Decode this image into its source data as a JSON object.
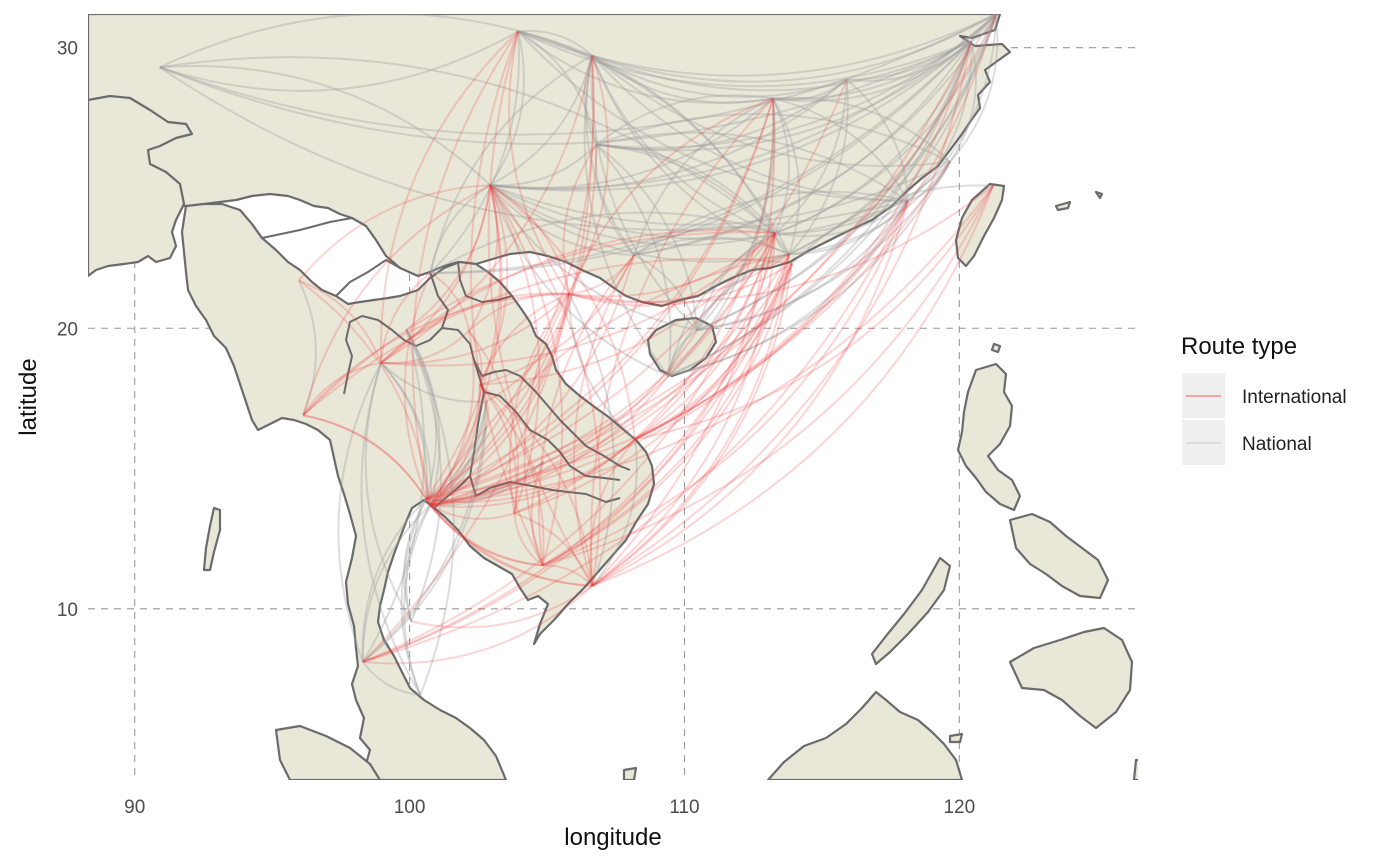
{
  "chart_data": {
    "type": "map",
    "xlabel": "longitude",
    "ylabel": "latitude",
    "xlim": [
      88.3,
      126.5
    ],
    "ylim": [
      3.9,
      31.2
    ],
    "x_ticks": [
      90,
      100,
      110,
      120
    ],
    "y_ticks": [
      10,
      20,
      30
    ],
    "grid": true,
    "legend": {
      "title": "Route type",
      "position": "right",
      "entries": [
        {
          "name": "International",
          "color": "#f26b6b"
        },
        {
          "name": "National",
          "color": "#c9c9c9"
        }
      ]
    },
    "colors": {
      "international": "#ee3b3b",
      "national": "#9e9e9e",
      "land": "#e9e7d8",
      "outline": "#6b6b6b"
    },
    "airports": {
      "BKK": [
        100.75,
        13.69
      ],
      "DMK": [
        100.6,
        13.91
      ],
      "CNX": [
        98.96,
        18.77
      ],
      "HKT": [
        98.3,
        8.11
      ],
      "USM": [
        100.06,
        9.55
      ],
      "HDY": [
        100.39,
        6.93
      ],
      "CEI": [
        99.88,
        19.95
      ],
      "KKC": [
        102.78,
        16.47
      ],
      "UTH": [
        102.79,
        17.39
      ],
      "UBP": [
        104.87,
        15.25
      ],
      "VTE": [
        102.56,
        17.99
      ],
      "LPQ": [
        102.16,
        19.9
      ],
      "PNH": [
        104.84,
        11.55
      ],
      "REP": [
        103.81,
        13.41
      ],
      "SGN": [
        106.65,
        10.82
      ],
      "HAN": [
        105.8,
        21.22
      ],
      "DAD": [
        108.2,
        16.04
      ],
      "RGN": [
        96.13,
        16.9
      ],
      "MDL": [
        95.97,
        21.7
      ],
      "KMG": [
        102.93,
        25.1
      ],
      "CKG": [
        106.64,
        29.72
      ],
      "CAN": [
        113.3,
        23.39
      ],
      "SZX": [
        113.81,
        22.64
      ],
      "HKG": [
        113.91,
        22.31
      ],
      "HAK": [
        110.46,
        19.93
      ],
      "SYX": [
        109.41,
        18.3
      ],
      "NNG": [
        108.17,
        22.61
      ],
      "XMN": [
        118.13,
        24.54
      ],
      "FOC": [
        119.66,
        25.93
      ],
      "CSX": [
        113.22,
        28.19
      ],
      "KWE": [
        106.8,
        26.54
      ],
      "KHN": [
        115.9,
        28.86
      ],
      "HGH": [
        120.43,
        30.23
      ],
      "SHA": [
        121.34,
        31.2
      ],
      "TPE": [
        121.23,
        25.08
      ],
      "LXA": [
        90.91,
        29.3
      ],
      "JHG": [
        100.76,
        21.97
      ],
      "CTU": [
        103.95,
        30.58
      ]
    },
    "international_routes": [
      [
        "BKK",
        "HAN"
      ],
      [
        "BKK",
        "SGN"
      ],
      [
        "BKK",
        "PNH"
      ],
      [
        "BKK",
        "REP"
      ],
      [
        "BKK",
        "VTE"
      ],
      [
        "BKK",
        "LPQ"
      ],
      [
        "BKK",
        "DAD"
      ],
      [
        "BKK",
        "RGN"
      ],
      [
        "BKK",
        "MDL"
      ],
      [
        "BKK",
        "KMG"
      ],
      [
        "BKK",
        "CAN"
      ],
      [
        "BKK",
        "HKG"
      ],
      [
        "BKK",
        "SZX"
      ],
      [
        "BKK",
        "XMN"
      ],
      [
        "BKK",
        "CKG"
      ],
      [
        "BKK",
        "HGH"
      ],
      [
        "BKK",
        "TPE"
      ],
      [
        "BKK",
        "NNG"
      ],
      [
        "BKK",
        "CSX"
      ],
      [
        "BKK",
        "KWE"
      ],
      [
        "BKK",
        "HAK"
      ],
      [
        "BKK",
        "SYX"
      ],
      [
        "DMK",
        "HAN"
      ],
      [
        "DMK",
        "SGN"
      ],
      [
        "DMK",
        "PNH"
      ],
      [
        "DMK",
        "VTE"
      ],
      [
        "DMK",
        "KMG"
      ],
      [
        "DMK",
        "CAN"
      ],
      [
        "DMK",
        "CSX"
      ],
      [
        "DMK",
        "KHN"
      ],
      [
        "DMK",
        "FOC"
      ],
      [
        "DMK",
        "SHA"
      ],
      [
        "DMK",
        "DAD"
      ],
      [
        "DMK",
        "RGN"
      ],
      [
        "CNX",
        "KMG"
      ],
      [
        "CNX",
        "HAN"
      ],
      [
        "CNX",
        "CAN"
      ],
      [
        "CNX",
        "LPQ"
      ],
      [
        "CNX",
        "RGN"
      ],
      [
        "CNX",
        "MDL"
      ],
      [
        "CNX",
        "CKG"
      ],
      [
        "HKT",
        "CAN"
      ],
      [
        "HKT",
        "HKG"
      ],
      [
        "HKT",
        "SGN"
      ],
      [
        "HKT",
        "XMN"
      ],
      [
        "HKT",
        "SZX"
      ],
      [
        "HKT",
        "CKG"
      ],
      [
        "SGN",
        "PNH"
      ],
      [
        "SGN",
        "REP"
      ],
      [
        "SGN",
        "VTE"
      ],
      [
        "SGN",
        "KMG"
      ],
      [
        "SGN",
        "CAN"
      ],
      [
        "SGN",
        "HKG"
      ],
      [
        "SGN",
        "TPE"
      ],
      [
        "SGN",
        "XMN"
      ],
      [
        "SGN",
        "HGH"
      ],
      [
        "SGN",
        "SZX"
      ],
      [
        "SGN",
        "CSX"
      ],
      [
        "HAN",
        "VTE"
      ],
      [
        "HAN",
        "LPQ"
      ],
      [
        "HAN",
        "KMG"
      ],
      [
        "HAN",
        "CAN"
      ],
      [
        "HAN",
        "HKG"
      ],
      [
        "HAN",
        "SZX"
      ],
      [
        "HAN",
        "NNG"
      ],
      [
        "HAN",
        "TPE"
      ],
      [
        "HAN",
        "REP"
      ],
      [
        "HAN",
        "PNH"
      ],
      [
        "HAN",
        "CKG"
      ],
      [
        "HAN",
        "RGN"
      ],
      [
        "HAN",
        "CNX"
      ],
      [
        "DAD",
        "HKG"
      ],
      [
        "DAD",
        "CAN"
      ],
      [
        "DAD",
        "TPE"
      ],
      [
        "DAD",
        "CSX"
      ],
      [
        "DAD",
        "HGH"
      ],
      [
        "DAD",
        "SHA"
      ],
      [
        "DAD",
        "SZX"
      ],
      [
        "DAD",
        "KMG"
      ],
      [
        "DAD",
        "SGN"
      ],
      [
        "PNH",
        "KMG"
      ],
      [
        "PNH",
        "CAN"
      ],
      [
        "PNH",
        "HKG"
      ],
      [
        "PNH",
        "SZX"
      ],
      [
        "PNH",
        "XMN"
      ],
      [
        "PNH",
        "TPE"
      ],
      [
        "PNH",
        "VTE"
      ],
      [
        "REP",
        "CAN"
      ],
      [
        "REP",
        "HKG"
      ],
      [
        "REP",
        "KMG"
      ],
      [
        "REP",
        "VTE"
      ],
      [
        "REP",
        "LPQ"
      ],
      [
        "REP",
        "PNH"
      ],
      [
        "VTE",
        "KMG"
      ],
      [
        "VTE",
        "CAN"
      ],
      [
        "VTE",
        "NNG"
      ],
      [
        "VTE",
        "LPQ"
      ],
      [
        "LPQ",
        "KMG"
      ],
      [
        "LPQ",
        "JHG"
      ],
      [
        "JHG",
        "BKK"
      ],
      [
        "JHG",
        "CNX"
      ],
      [
        "KMG",
        "RGN"
      ],
      [
        "KMG",
        "MDL"
      ],
      [
        "CAN",
        "RGN"
      ],
      [
        "HKG",
        "RGN"
      ],
      [
        "KKC",
        "VTE"
      ],
      [
        "UBP",
        "PNH"
      ],
      [
        "UTH",
        "HAN"
      ],
      [
        "CEI",
        "KMG"
      ],
      [
        "USM",
        "SGN"
      ],
      [
        "CAN",
        "CNX"
      ],
      [
        "SZX",
        "BKK"
      ],
      [
        "CTU",
        "BKK"
      ],
      [
        "CTU",
        "HAN"
      ],
      [
        "CTU",
        "SGN"
      ],
      [
        "CTU",
        "CNX"
      ],
      [
        "CTU",
        "PNH"
      ],
      [
        "KWE",
        "HAN"
      ],
      [
        "CSX",
        "HAN"
      ],
      [
        "CSX",
        "SGN"
      ],
      [
        "NNG",
        "SGN"
      ],
      [
        "NNG",
        "PNH"
      ]
    ],
    "national_routes": [
      [
        "BKK",
        "CNX"
      ],
      [
        "BKK",
        "HKT"
      ],
      [
        "BKK",
        "USM"
      ],
      [
        "BKK",
        "HDY"
      ],
      [
        "BKK",
        "CEI"
      ],
      [
        "BKK",
        "KKC"
      ],
      [
        "BKK",
        "UTH"
      ],
      [
        "BKK",
        "UBP"
      ],
      [
        "DMK",
        "CNX"
      ],
      [
        "DMK",
        "HKT"
      ],
      [
        "DMK",
        "USM"
      ],
      [
        "DMK",
        "HDY"
      ],
      [
        "DMK",
        "CEI"
      ],
      [
        "DMK",
        "KKC"
      ],
      [
        "DMK",
        "UTH"
      ],
      [
        "DMK",
        "UBP"
      ],
      [
        "CNX",
        "HKT"
      ],
      [
        "CNX",
        "USM"
      ],
      [
        "CNX",
        "HDY"
      ],
      [
        "CNX",
        "UTH"
      ],
      [
        "HKT",
        "CEI"
      ],
      [
        "HKT",
        "UTH"
      ],
      [
        "HKT",
        "HDY"
      ],
      [
        "HKT",
        "KKC"
      ],
      [
        "USM",
        "CEI"
      ],
      [
        "HDY",
        "CEI"
      ],
      [
        "SGN",
        "HAN"
      ],
      [
        "SGN",
        "DAD"
      ],
      [
        "HAN",
        "DAD"
      ],
      [
        "KMG",
        "CKG"
      ],
      [
        "KMG",
        "CAN"
      ],
      [
        "KMG",
        "SZX"
      ],
      [
        "KMG",
        "XMN"
      ],
      [
        "KMG",
        "HGH"
      ],
      [
        "KMG",
        "SHA"
      ],
      [
        "KMG",
        "CSX"
      ],
      [
        "KMG",
        "KWE"
      ],
      [
        "KMG",
        "NNG"
      ],
      [
        "KMG",
        "HAK"
      ],
      [
        "KMG",
        "SYX"
      ],
      [
        "KMG",
        "FOC"
      ],
      [
        "KMG",
        "KHN"
      ],
      [
        "KMG",
        "LXA"
      ],
      [
        "KMG",
        "JHG"
      ],
      [
        "KMG",
        "CTU"
      ],
      [
        "CKG",
        "CAN"
      ],
      [
        "CKG",
        "SZX"
      ],
      [
        "CKG",
        "XMN"
      ],
      [
        "CKG",
        "HGH"
      ],
      [
        "CKG",
        "SHA"
      ],
      [
        "CKG",
        "CSX"
      ],
      [
        "CKG",
        "KWE"
      ],
      [
        "CKG",
        "NNG"
      ],
      [
        "CKG",
        "HAK"
      ],
      [
        "CKG",
        "SYX"
      ],
      [
        "CKG",
        "FOC"
      ],
      [
        "CKG",
        "KHN"
      ],
      [
        "CKG",
        "LXA"
      ],
      [
        "CKG",
        "JHG"
      ],
      [
        "CKG",
        "CTU"
      ],
      [
        "CAN",
        "SZX"
      ],
      [
        "CAN",
        "XMN"
      ],
      [
        "CAN",
        "HGH"
      ],
      [
        "CAN",
        "SHA"
      ],
      [
        "CAN",
        "CSX"
      ],
      [
        "CAN",
        "KWE"
      ],
      [
        "CAN",
        "NNG"
      ],
      [
        "CAN",
        "HAK"
      ],
      [
        "CAN",
        "SYX"
      ],
      [
        "CAN",
        "FOC"
      ],
      [
        "CAN",
        "KHN"
      ],
      [
        "CAN",
        "LXA"
      ],
      [
        "CAN",
        "JHG"
      ],
      [
        "CAN",
        "CTU"
      ],
      [
        "SZX",
        "XMN"
      ],
      [
        "SZX",
        "HGH"
      ],
      [
        "SZX",
        "SHA"
      ],
      [
        "SZX",
        "CSX"
      ],
      [
        "SZX",
        "KWE"
      ],
      [
        "SZX",
        "NNG"
      ],
      [
        "SZX",
        "HAK"
      ],
      [
        "SZX",
        "SYX"
      ],
      [
        "SZX",
        "FOC"
      ],
      [
        "SZX",
        "KHN"
      ],
      [
        "SZX",
        "CTU"
      ],
      [
        "HAK",
        "SYX"
      ],
      [
        "HAK",
        "XMN"
      ],
      [
        "HAK",
        "HGH"
      ],
      [
        "HAK",
        "SHA"
      ],
      [
        "HAK",
        "CSX"
      ],
      [
        "HAK",
        "KWE"
      ],
      [
        "HAK",
        "NNG"
      ],
      [
        "HAK",
        "FOC"
      ],
      [
        "SYX",
        "XMN"
      ],
      [
        "SYX",
        "HGH"
      ],
      [
        "SYX",
        "SHA"
      ],
      [
        "SYX",
        "CSX"
      ],
      [
        "SYX",
        "KWE"
      ],
      [
        "SYX",
        "FOC"
      ],
      [
        "XMN",
        "HGH"
      ],
      [
        "XMN",
        "SHA"
      ],
      [
        "XMN",
        "CSX"
      ],
      [
        "XMN",
        "KWE"
      ],
      [
        "XMN",
        "NNG"
      ],
      [
        "XMN",
        "FOC"
      ],
      [
        "XMN",
        "KHN"
      ],
      [
        "FOC",
        "HGH"
      ],
      [
        "FOC",
        "SHA"
      ],
      [
        "FOC",
        "CSX"
      ],
      [
        "FOC",
        "KWE"
      ],
      [
        "CSX",
        "HGH"
      ],
      [
        "CSX",
        "SHA"
      ],
      [
        "CSX",
        "KWE"
      ],
      [
        "CSX",
        "NNG"
      ],
      [
        "CSX",
        "KHN"
      ],
      [
        "KWE",
        "HGH"
      ],
      [
        "KWE",
        "SHA"
      ],
      [
        "KWE",
        "NNG"
      ],
      [
        "KWE",
        "KHN"
      ],
      [
        "KWE",
        "CTU"
      ],
      [
        "NNG",
        "HGH"
      ],
      [
        "NNG",
        "SHA"
      ],
      [
        "KHN",
        "HGH"
      ],
      [
        "KHN",
        "SHA"
      ],
      [
        "HGH",
        "SHA"
      ],
      [
        "LXA",
        "CTU"
      ],
      [
        "LXA",
        "HGH"
      ],
      [
        "LXA",
        "SHA"
      ],
      [
        "LXA",
        "XMN"
      ],
      [
        "JHG",
        "SHA"
      ],
      [
        "JHG",
        "HGH"
      ],
      [
        "JHG",
        "CTU"
      ],
      [
        "CTU",
        "SHA"
      ],
      [
        "CTU",
        "HGH"
      ],
      [
        "CTU",
        "XMN"
      ],
      [
        "CTU",
        "CSX"
      ],
      [
        "RGN",
        "MDL"
      ],
      [
        "TPE",
        "HKG"
      ]
    ]
  }
}
